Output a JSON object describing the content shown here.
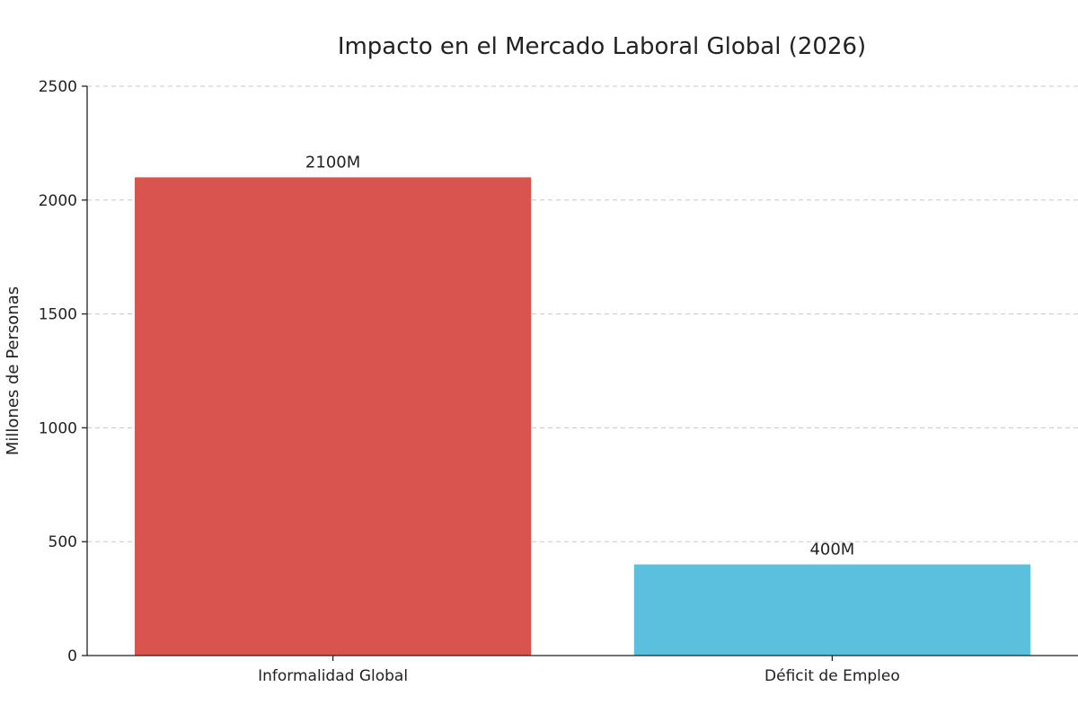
{
  "chart_data": {
    "type": "bar",
    "title": "Impacto en el Mercado Laboral Global (2026)",
    "xlabel": "",
    "ylabel": "Millones de Personas",
    "categories": [
      "Informalidad Global",
      "Déficit de Empleo"
    ],
    "values": [
      2100,
      400
    ],
    "value_labels": [
      "2100M",
      "400M"
    ],
    "bar_colors": [
      "#d9534f",
      "#5bc0de"
    ],
    "ylim": [
      0,
      2500
    ],
    "yticks": [
      0,
      500,
      1000,
      1500,
      2000,
      2500
    ],
    "grid": "y",
    "legend": "none"
  }
}
